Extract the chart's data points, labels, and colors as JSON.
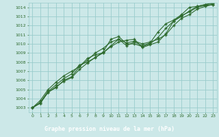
{
  "title": "Graphe pression niveau de la mer (hPa)",
  "bg_color": "#cce8e8",
  "footer_bg": "#2d6a2d",
  "footer_text_color": "#ffffff",
  "grid_color": "#99cccc",
  "line_color": "#2d6a2d",
  "marker": "+",
  "xlim": [
    -0.5,
    23.5
  ],
  "ylim": [
    1002.5,
    1014.5
  ],
  "xticks": [
    0,
    1,
    2,
    3,
    4,
    5,
    6,
    7,
    8,
    9,
    10,
    11,
    12,
    13,
    14,
    15,
    16,
    17,
    18,
    19,
    20,
    21,
    22,
    23
  ],
  "yticks": [
    1003,
    1004,
    1005,
    1006,
    1007,
    1008,
    1009,
    1010,
    1011,
    1012,
    1013,
    1014
  ],
  "line1": {
    "x": [
      0,
      1,
      2,
      3,
      4,
      5,
      6,
      7,
      8,
      9,
      10,
      11,
      12,
      13,
      14,
      15,
      16,
      17,
      18,
      19,
      20,
      21,
      22,
      23
    ],
    "y": [
      1003.0,
      1003.5,
      1004.7,
      1005.3,
      1005.9,
      1006.3,
      1007.2,
      1007.9,
      1008.5,
      1009.1,
      1010.5,
      1010.8,
      1010.0,
      1010.0,
      1009.7,
      1010.0,
      1010.7,
      1011.7,
      1012.5,
      1013.1,
      1013.5,
      1014.0,
      1014.2,
      1014.3
    ]
  },
  "line2": {
    "x": [
      0,
      1,
      2,
      3,
      4,
      5,
      6,
      7,
      8,
      9,
      10,
      11,
      12,
      13,
      14,
      15,
      16,
      17,
      18,
      19,
      20,
      21,
      22,
      23
    ],
    "y": [
      1003.0,
      1003.5,
      1004.7,
      1005.2,
      1006.0,
      1006.4,
      1007.5,
      1008.4,
      1008.8,
      1009.0,
      1009.8,
      1010.5,
      1009.8,
      1010.2,
      1009.8,
      1010.1,
      1011.3,
      1012.2,
      1012.6,
      1013.2,
      1014.0,
      1014.1,
      1014.3,
      1014.4
    ]
  },
  "line3": {
    "x": [
      0,
      1,
      2,
      3,
      4,
      5,
      6,
      7,
      8,
      9,
      10,
      11,
      12,
      13,
      14,
      15,
      16,
      17,
      18,
      19,
      20,
      21,
      22,
      23
    ],
    "y": [
      1003.0,
      1003.6,
      1004.8,
      1005.5,
      1006.2,
      1006.7,
      1007.7,
      1008.0,
      1008.5,
      1009.0,
      1009.7,
      1010.2,
      1010.4,
      1010.5,
      1009.6,
      1009.9,
      1010.2,
      1011.1,
      1012.5,
      1013.0,
      1013.6,
      1014.1,
      1014.3,
      1014.5
    ]
  },
  "line4": {
    "x": [
      0,
      1,
      2,
      3,
      4,
      5,
      6,
      7,
      8,
      9,
      10,
      11,
      12,
      13,
      14,
      15,
      16,
      17,
      18,
      19,
      20,
      21,
      22,
      23
    ],
    "y": [
      1003.0,
      1003.8,
      1005.0,
      1005.8,
      1006.5,
      1007.0,
      1007.5,
      1008.2,
      1009.0,
      1009.5,
      1010.2,
      1010.5,
      1010.1,
      1010.3,
      1010.0,
      1010.2,
      1010.5,
      1011.0,
      1012.0,
      1012.8,
      1013.2,
      1013.8,
      1014.1,
      1014.3
    ]
  }
}
